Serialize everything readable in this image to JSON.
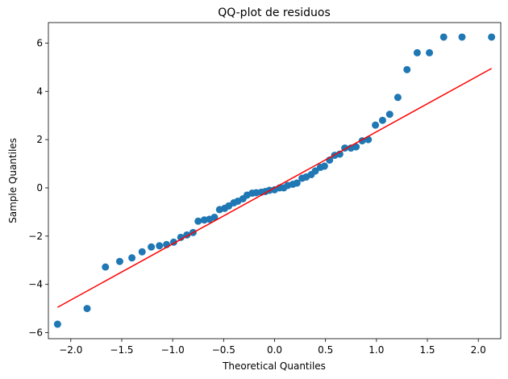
{
  "chart_data": {
    "type": "scatter",
    "title": "QQ-plot de residuos",
    "xlabel": "Theoretical Quantiles",
    "ylabel": "Sample Quantiles",
    "xlim": [
      -2.22,
      2.22
    ],
    "ylim": [
      -6.25,
      6.85
    ],
    "xticks": [
      -2.0,
      -1.5,
      -1.0,
      -0.5,
      0.0,
      0.5,
      1.0,
      1.5,
      2.0
    ],
    "xtick_labels": [
      "−2.0",
      "−1.5",
      "−1.0",
      "−0.5",
      "0.0",
      "0.5",
      "1.0",
      "1.5",
      "2.0"
    ],
    "yticks": [
      -6,
      -4,
      -2,
      0,
      2,
      4,
      6
    ],
    "ytick_labels": [
      "−6",
      "−4",
      "−2",
      "0",
      "2",
      "4",
      "6"
    ],
    "grid": false,
    "colors": {
      "points": "#1f77b4",
      "line": "#ff0000",
      "axes": "#000000"
    },
    "reference_line": {
      "x": [
        -2.13,
        2.13
      ],
      "y": [
        -4.95,
        4.95
      ]
    },
    "points": {
      "x": [
        -2.13,
        -1.84,
        -1.66,
        -1.52,
        -1.4,
        -1.3,
        -1.21,
        -1.13,
        -1.06,
        -0.99,
        -0.92,
        -0.86,
        -0.8,
        -0.75,
        -0.69,
        -0.64,
        -0.59,
        -0.54,
        -0.49,
        -0.45,
        -0.4,
        -0.36,
        -0.31,
        -0.27,
        -0.22,
        -0.18,
        -0.13,
        -0.09,
        -0.05,
        0.0,
        0.05,
        0.09,
        0.13,
        0.18,
        0.22,
        0.27,
        0.31,
        0.36,
        0.4,
        0.45,
        0.49,
        0.54,
        0.59,
        0.64,
        0.69,
        0.75,
        0.8,
        0.86,
        0.92,
        0.99,
        1.06,
        1.13,
        1.21,
        1.3,
        1.4,
        1.52,
        1.66,
        1.84,
        2.13
      ],
      "y": [
        -5.65,
        -5.0,
        -3.28,
        -3.05,
        -2.9,
        -2.65,
        -2.45,
        -2.4,
        -2.35,
        -2.25,
        -2.05,
        -1.95,
        -1.85,
        -1.38,
        -1.33,
        -1.3,
        -1.22,
        -0.9,
        -0.85,
        -0.75,
        -0.62,
        -0.55,
        -0.45,
        -0.3,
        -0.22,
        -0.2,
        -0.18,
        -0.15,
        -0.1,
        -0.08,
        0.0,
        0.0,
        0.1,
        0.15,
        0.2,
        0.4,
        0.45,
        0.55,
        0.7,
        0.85,
        0.9,
        1.15,
        1.35,
        1.4,
        1.65,
        1.65,
        1.7,
        1.95,
        2.0,
        2.6,
        2.8,
        3.05,
        3.75,
        4.9,
        5.6,
        5.6,
        6.25,
        6.25,
        6.25
      ]
    }
  }
}
